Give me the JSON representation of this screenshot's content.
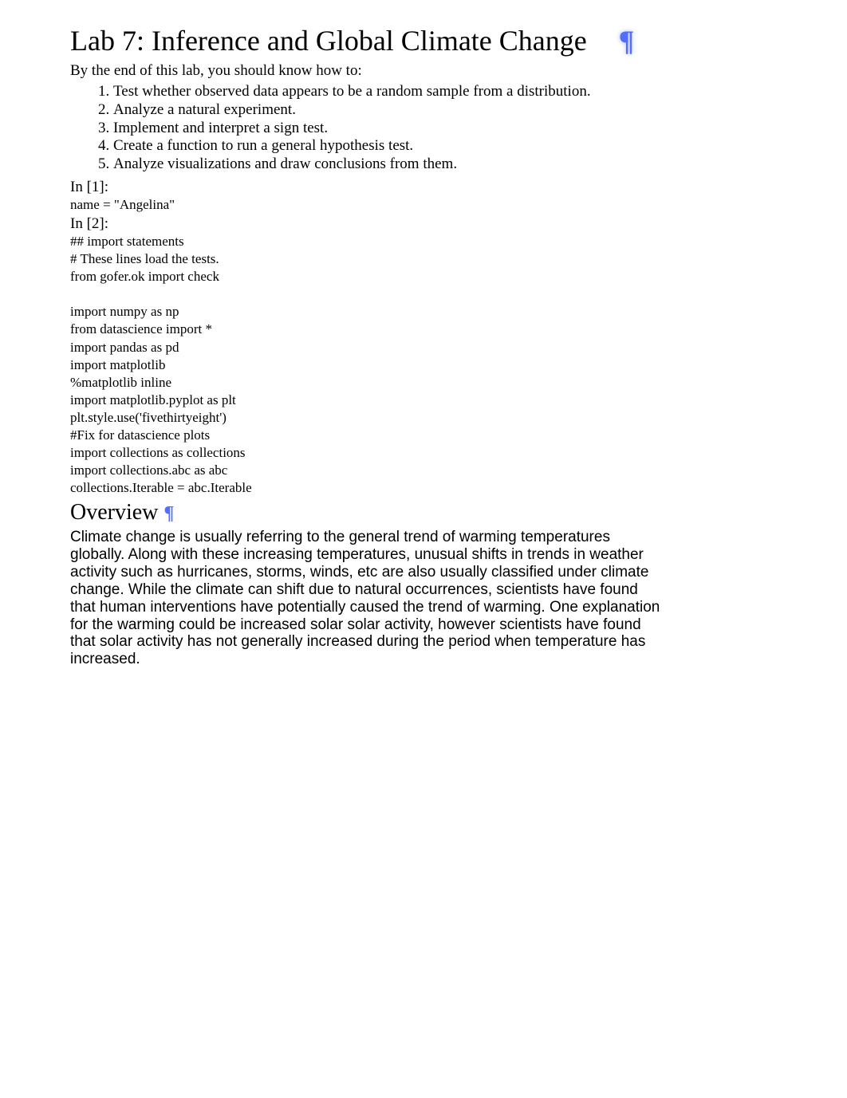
{
  "title": "Lab 7: Inference and Global Climate Change",
  "pilcrow": "¶",
  "pilcrow_color": "#536dfe",
  "intro": "By the end of this lab, you should know how to:",
  "objectives": [
    "Test whether observed data appears to be a random sample from a distribution.",
    "Analyze a natural experiment.",
    "Implement and interpret a sign test.",
    "Create a function to run a general hypothesis test.",
    "Analyze visualizations and draw conclusions from them."
  ],
  "cell1": {
    "prompt": "In [1]:",
    "lines": [
      "name = \"Angelina\""
    ]
  },
  "cell2": {
    "prompt": "In [2]:",
    "lines": [
      "## import statements",
      "# These lines load the tests.",
      "from gofer.ok import check",
      "",
      "import numpy as np",
      "from datascience import *",
      "import pandas as pd",
      "import matplotlib",
      "%matplotlib inline",
      "import matplotlib.pyplot as plt",
      "plt.style.use('fivethirtyeight')",
      "#Fix for datascience plots",
      "import collections as collections",
      "import collections.abc as abc",
      "collections.Iterable = abc.Iterable"
    ]
  },
  "overview": {
    "heading": "Overview",
    "text": "Climate change is usually referring to the general trend of warming temperatures globally. Along with these increasing temperatures, unusual shifts in trends in weather activity such as hurricanes, storms, winds, etc are also usually classified under climate change. While the climate can shift due to natural occurrences, scientists have found that human interventions have potentially caused the trend of warming. One explanation for the warming could be increased solar solar activity, however scientists have found that solar activity has not generally increased during the period when temperature has increased."
  },
  "colors": {
    "text": "#000000",
    "link": "#536dfe",
    "background": "#ffffff"
  },
  "fonts": {
    "serif": "Georgia, Times New Roman, serif",
    "sans": "Arial, Helvetica, sans-serif",
    "title_size": 36,
    "body_size": 19,
    "code_size": 17,
    "h2_size": 28
  }
}
